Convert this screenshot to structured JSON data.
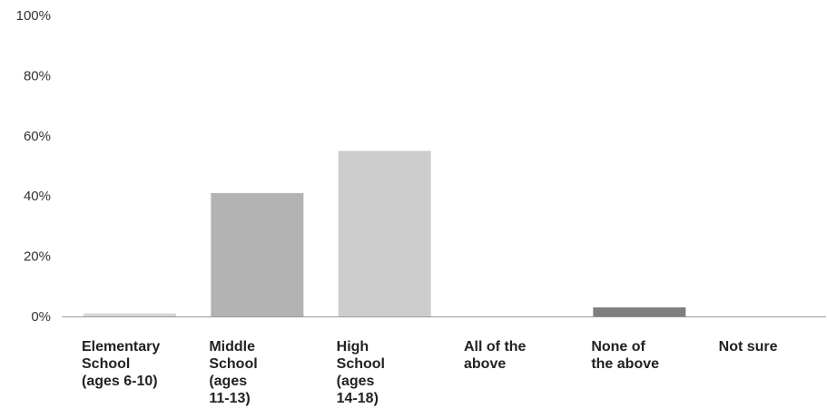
{
  "chart_data": {
    "type": "bar",
    "title": "",
    "xlabel": "",
    "ylabel": "",
    "ylim": [
      0,
      100
    ],
    "y_ticks": [
      "0%",
      "20%",
      "40%",
      "60%",
      "80%",
      "100%"
    ],
    "y_tick_values": [
      0,
      20,
      40,
      60,
      80,
      100
    ],
    "grid": false,
    "categories": [
      [
        "Elementary",
        "School",
        "(ages 6-10)"
      ],
      [
        "Middle",
        "School",
        "(ages",
        "11-13)"
      ],
      [
        "High",
        "School",
        "(ages",
        "14-18)"
      ],
      [
        "All of the",
        "above"
      ],
      [
        "None of",
        "the above"
      ],
      [
        "Not sure"
      ]
    ],
    "values": [
      1,
      41,
      55,
      0,
      3,
      0
    ],
    "bar_colors": [
      "#d6d6d6",
      "#b3b3b3",
      "#cdcdcd",
      "#c8c8c8",
      "#7e7e7e",
      "#c8c8c8"
    ],
    "axis_color": "#9a9a9a"
  }
}
